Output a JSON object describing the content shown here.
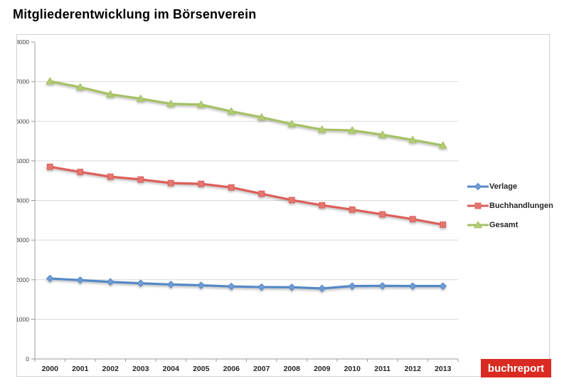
{
  "page": {
    "title": "Mitgliederentwicklung im Börsenverein"
  },
  "chart_data": {
    "type": "line",
    "title": "Mitgliederentwicklung im Börsenverein",
    "categories": [
      "2000",
      "2001",
      "2002",
      "2003",
      "2004",
      "2005",
      "2006",
      "2007",
      "2008",
      "2009",
      "2010",
      "2011",
      "2012",
      "2013"
    ],
    "series": [
      {
        "name": "Verlage",
        "marker": "diamond",
        "color": "#5488c7",
        "marker_color": "#6f9bd4",
        "values": [
          2030,
          1990,
          1945,
          1910,
          1880,
          1860,
          1830,
          1815,
          1810,
          1780,
          1840,
          1845,
          1840,
          1840
        ]
      },
      {
        "name": "Buchhandlungen",
        "marker": "square",
        "color": "#dd5f59",
        "marker_color": "#e57670",
        "values": [
          4850,
          4720,
          4600,
          4530,
          4440,
          4420,
          4330,
          4170,
          4010,
          3880,
          3770,
          3650,
          3530,
          3390
        ]
      },
      {
        "name": "Gesamt",
        "marker": "triangle",
        "color": "#a4c163",
        "marker_color": "#b3cc74",
        "values": [
          7010,
          6860,
          6680,
          6570,
          6440,
          6420,
          6250,
          6100,
          5930,
          5790,
          5770,
          5660,
          5530,
          5390
        ]
      }
    ],
    "xlabel": "",
    "ylabel": "",
    "ylim": [
      0,
      8000
    ],
    "yticks": [
      "0",
      "1000",
      "2000",
      "3000",
      "4000",
      "5000",
      "6000",
      "7000",
      "8000"
    ],
    "grid": true,
    "legend_position": "right",
    "colors": {
      "gridline": "#d9d9d9",
      "axis": "#9b9b9b",
      "tick_label": "#404040",
      "category_label": "#262626"
    }
  },
  "branding": {
    "logo_text": "buchreport",
    "logo_bg": "#d92b22",
    "logo_text_color": "#ffffff"
  }
}
